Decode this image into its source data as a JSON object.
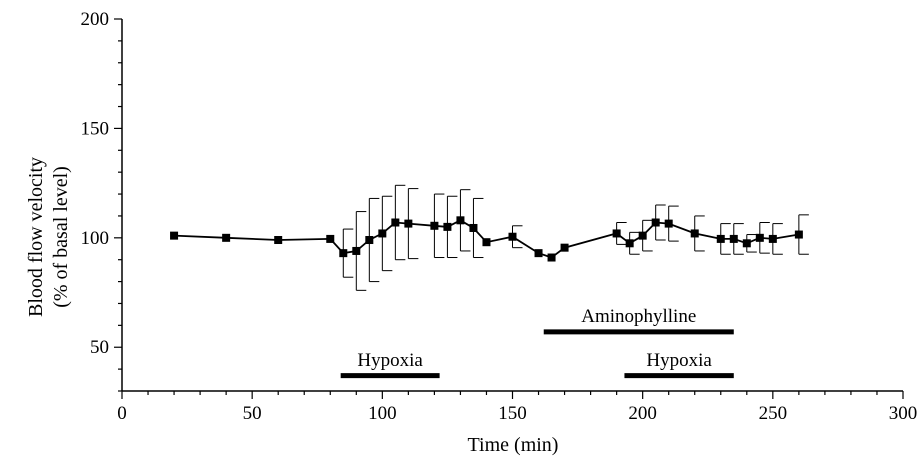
{
  "chart_data": {
    "type": "line",
    "title": "",
    "xlabel": "Time  (min)",
    "ylabel_lines": [
      "Blood flow velocity",
      "(% of basal level)"
    ],
    "xlim": [
      0,
      300
    ],
    "ylim": [
      30,
      200
    ],
    "x_ticks": [
      0,
      50,
      100,
      150,
      200,
      250,
      300
    ],
    "x_tick_labels": [
      "0",
      "50",
      "100",
      "150",
      "200",
      "250",
      "300"
    ],
    "y_ticks": [
      50,
      100,
      150,
      200
    ],
    "y_tick_labels": [
      "50",
      "100",
      "150",
      "200"
    ],
    "grid": false,
    "legend": "none",
    "series": [
      {
        "points": [
          {
            "x": 20,
            "y": 101
          },
          {
            "x": 40,
            "y": 100
          },
          {
            "x": 60,
            "y": 99
          },
          {
            "x": 80,
            "y": 99.5
          },
          {
            "x": 85,
            "y": 93,
            "err": 11
          },
          {
            "x": 90,
            "y": 94,
            "err": 18
          },
          {
            "x": 95,
            "y": 99,
            "err": 19
          },
          {
            "x": 100,
            "y": 102,
            "err": 17
          },
          {
            "x": 105,
            "y": 107,
            "err": 17
          },
          {
            "x": 110,
            "y": 106.5,
            "err": 16
          },
          {
            "x": 120,
            "y": 105.5,
            "err": 14.5
          },
          {
            "x": 125,
            "y": 105,
            "err": 14
          },
          {
            "x": 130,
            "y": 108,
            "err": 14
          },
          {
            "x": 135,
            "y": 104.5,
            "err": 13.5
          },
          {
            "x": 140,
            "y": 98
          },
          {
            "x": 150,
            "y": 100.5,
            "err": 5
          },
          {
            "x": 160,
            "y": 93
          },
          {
            "x": 165,
            "y": 91
          },
          {
            "x": 170,
            "y": 95.5
          },
          {
            "x": 190,
            "y": 102,
            "err": 5
          },
          {
            "x": 195,
            "y": 97.5,
            "err": 5
          },
          {
            "x": 200,
            "y": 101,
            "err": 7
          },
          {
            "x": 205,
            "y": 107,
            "err": 8
          },
          {
            "x": 210,
            "y": 106.5,
            "err": 8
          },
          {
            "x": 220,
            "y": 102,
            "err": 8
          },
          {
            "x": 230,
            "y": 99.5,
            "err": 7
          },
          {
            "x": 235,
            "y": 99.5,
            "err": 7
          },
          {
            "x": 240,
            "y": 97.5,
            "err": 4
          },
          {
            "x": 245,
            "y": 100,
            "err": 7
          },
          {
            "x": 250,
            "y": 99.5,
            "err": 7
          },
          {
            "x": 260,
            "y": 101.5,
            "err": 9
          }
        ]
      }
    ],
    "annotations": [
      {
        "label": "Hypoxia",
        "x_start": 84,
        "x_end": 122,
        "y": 37,
        "label_y": 41.5
      },
      {
        "label": "Aminophylline",
        "x_start": 162,
        "x_end": 235,
        "y": 57,
        "label_y": 61.5
      },
      {
        "label": "Hypoxia",
        "x_start": 193,
        "x_end": 235,
        "y": 37,
        "label_y": 41.5
      }
    ]
  }
}
